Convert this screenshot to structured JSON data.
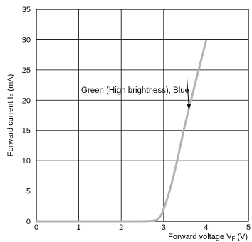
{
  "chart_data": {
    "type": "line",
    "xlabel": "Forward voltage V",
    "xlabel_subscript": "F",
    "xlabel_unit": "(V)",
    "ylabel": "Forward current I",
    "ylabel_subscript": "F",
    "ylabel_unit": "(mA)",
    "xlim": [
      0,
      5
    ],
    "ylim": [
      0,
      35
    ],
    "x_ticks": [
      0,
      1,
      2,
      3,
      4,
      5
    ],
    "y_ticks": [
      0,
      5,
      10,
      15,
      20,
      25,
      30,
      35
    ],
    "grid": true,
    "series": [
      {
        "name": "Green (High brightness), Blue",
        "color": "#b3b3b3",
        "x": [
          0,
          2.5,
          2.7,
          2.8,
          2.85,
          2.9,
          2.95,
          3.0,
          3.1,
          3.2,
          3.3,
          3.4,
          3.5,
          3.6,
          3.7,
          3.8,
          3.9,
          4.0
        ],
        "y": [
          0,
          0,
          0.05,
          0.15,
          0.3,
          0.6,
          1.1,
          2.0,
          4.0,
          6.5,
          9.4,
          12.6,
          15.8,
          18.7,
          21.5,
          24.3,
          27.0,
          29.8
        ]
      }
    ],
    "annotation": {
      "text": "Green (High brightness), Blue",
      "arrow_from": [
        3.55,
        23.5
      ],
      "arrow_to": [
        3.6,
        18.5
      ]
    }
  }
}
